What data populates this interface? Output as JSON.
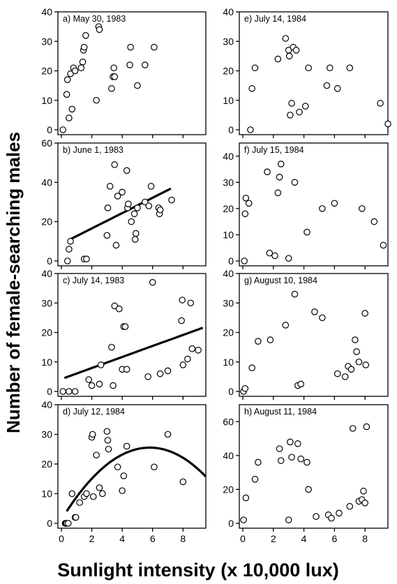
{
  "figure": {
    "ylabel": "Number of female-searching males",
    "xlabel": "Sunlight intensity (x 10,000 lux)"
  },
  "chart_data": [
    {
      "type": "scatter",
      "label": "a) May 30, 1983",
      "xlim": [
        0,
        9.5
      ],
      "ylim": [
        0,
        40
      ],
      "yticks": [
        0,
        10,
        20,
        30,
        40
      ],
      "xticks": [],
      "fit": null,
      "x": [
        0.1,
        0.35,
        0.4,
        0.5,
        0.6,
        0.7,
        0.8,
        0.9,
        1.3,
        1.4,
        1.45,
        1.5,
        1.6,
        2.3,
        2.45,
        2.5,
        3.3,
        3.4,
        3.45,
        3.5,
        4.5,
        4.55,
        5.0,
        5.5,
        6.1
      ],
      "y": [
        0,
        12,
        17,
        4,
        19,
        7,
        21,
        20,
        21,
        23,
        27,
        28,
        32,
        10,
        35,
        34,
        14,
        18,
        21,
        18,
        22,
        28,
        15,
        22,
        28
      ]
    },
    {
      "type": "scatter",
      "label": "b) June 1, 1983",
      "xlim": [
        0,
        9.5
      ],
      "ylim": [
        0,
        60
      ],
      "yticks": [
        0,
        20,
        40,
        60
      ],
      "xticks": [],
      "fit": {
        "kind": "linear",
        "x_range": [
          0.6,
          7.2
        ],
        "coef": [
          8.75,
          3.9
        ]
      },
      "x": [
        0.4,
        0.5,
        0.6,
        1.5,
        1.65,
        3.0,
        3.05,
        3.2,
        3.5,
        3.6,
        3.7,
        4.0,
        4.3,
        4.35,
        4.4,
        4.6,
        4.8,
        4.85,
        4.9,
        5.0,
        5.5,
        5.75,
        5.9,
        6.4,
        6.45,
        6.5,
        7.25
      ],
      "y": [
        0,
        6,
        10,
        1,
        1,
        13,
        27,
        38,
        49,
        8,
        33,
        35,
        46,
        27,
        29,
        20,
        24,
        11,
        14,
        27,
        30,
        28,
        38,
        27,
        24,
        26,
        31
      ]
    },
    {
      "type": "scatter",
      "label": "c) July 14, 1983",
      "xlim": [
        0,
        9.5
      ],
      "ylim": [
        0,
        40
      ],
      "yticks": [
        0,
        10,
        20,
        30,
        40
      ],
      "xticks": [],
      "fit": {
        "kind": "linear",
        "x_range": [
          0.2,
          9.3
        ],
        "coef": [
          4.2,
          1.87
        ]
      },
      "x": [
        0.1,
        0.5,
        0.9,
        1.8,
        2.0,
        2.5,
        2.6,
        3.3,
        3.4,
        3.5,
        3.8,
        4.0,
        4.1,
        4.2,
        4.3,
        5.7,
        6.0,
        6.5,
        7.0,
        7.9,
        7.95,
        8.0,
        8.3,
        8.5,
        8.6,
        9.0
      ],
      "y": [
        0,
        0,
        0,
        4,
        2,
        2.5,
        9,
        15,
        2,
        29,
        28,
        7.5,
        22,
        22,
        7.5,
        5,
        37,
        6,
        7,
        24,
        31,
        9,
        11,
        30,
        14.5,
        14
      ]
    },
    {
      "type": "scatter",
      "label": "d) July 12, 1984",
      "xlim": [
        0,
        9.5
      ],
      "ylim": [
        0,
        40
      ],
      "yticks": [
        0,
        10,
        20,
        30,
        40
      ],
      "xticks": [
        0,
        2,
        4,
        6,
        8
      ],
      "fit": {
        "kind": "quadratic",
        "x_range": [
          0.35,
          9.5
        ],
        "coef": [
          1.2,
          8.37,
          -0.72
        ]
      },
      "x": [
        0.25,
        0.3,
        0.35,
        0.45,
        0.7,
        0.9,
        0.95,
        1.2,
        1.5,
        1.65,
        2.0,
        2.05,
        2.1,
        2.3,
        2.5,
        2.7,
        3.0,
        3.05,
        3.1,
        3.7,
        4.0,
        4.1,
        4.3,
        6.1,
        7.0,
        8.0
      ],
      "y": [
        0,
        0,
        0,
        0,
        10,
        2,
        2,
        7,
        9,
        10,
        29,
        30,
        9,
        23,
        12,
        10,
        31,
        28,
        25,
        19,
        11,
        16,
        26,
        19,
        30,
        14
      ]
    },
    {
      "type": "scatter",
      "label": "e) July 14, 1984",
      "xlim": [
        0,
        9.5
      ],
      "ylim": [
        0,
        40
      ],
      "yticks": [
        0,
        10,
        20,
        30,
        40
      ],
      "xticks": [],
      "fit": null,
      "x": [
        0.5,
        0.6,
        0.8,
        2.3,
        2.8,
        3.0,
        3.05,
        3.1,
        3.2,
        3.3,
        3.5,
        3.7,
        4.1,
        4.3,
        5.5,
        5.7,
        6.2,
        7.0,
        9.0,
        9.5
      ],
      "y": [
        0,
        14,
        21,
        24,
        31,
        27,
        25,
        5,
        9,
        28,
        27,
        6,
        8,
        21,
        15,
        21,
        14,
        21,
        9,
        2
      ]
    },
    {
      "type": "scatter",
      "label": "f) July 15, 1984",
      "xlim": [
        0,
        9.5
      ],
      "ylim": [
        0,
        45
      ],
      "yticks": [
        0,
        10,
        20,
        30,
        40
      ],
      "xticks": [],
      "fit": null,
      "x": [
        0.1,
        0.15,
        0.2,
        0.4,
        1.6,
        1.75,
        2.1,
        2.3,
        2.4,
        2.5,
        3.0,
        3.4,
        4.2,
        5.2,
        6.0,
        7.8,
        8.6,
        9.2
      ],
      "y": [
        0,
        18,
        24,
        22,
        34,
        3,
        2,
        26,
        32,
        37,
        1,
        30,
        11,
        20,
        22,
        20,
        15,
        6
      ]
    },
    {
      "type": "scatter",
      "label": "g) August 10, 1984",
      "xlim": [
        0,
        9.5
      ],
      "ylim": [
        0,
        40
      ],
      "yticks": [
        0,
        10,
        20,
        30,
        40
      ],
      "xticks": [],
      "fit": null,
      "x": [
        0.05,
        0.15,
        0.6,
        1.0,
        1.8,
        2.8,
        3.4,
        3.6,
        3.8,
        4.7,
        5.2,
        6.2,
        6.7,
        6.9,
        7.1,
        7.35,
        7.45,
        7.6,
        8.0,
        8.05
      ],
      "y": [
        0,
        1,
        8,
        17,
        17.5,
        22.5,
        33,
        2,
        2.5,
        27,
        25,
        6,
        5,
        8.5,
        7.5,
        17.5,
        13.5,
        10,
        26.5,
        9
      ]
    },
    {
      "type": "scatter",
      "label": "h) August 11, 1984",
      "xlim": [
        0,
        9.5
      ],
      "ylim": [
        0,
        70
      ],
      "yticks": [
        0,
        20,
        40,
        60
      ],
      "xticks": [
        0,
        2,
        4,
        6,
        8
      ],
      "fit": null,
      "x": [
        0.05,
        0.2,
        0.8,
        1.0,
        2.4,
        2.5,
        3.0,
        3.1,
        3.2,
        3.6,
        3.8,
        4.2,
        4.3,
        4.8,
        5.6,
        5.8,
        6.3,
        7.0,
        7.2,
        7.6,
        7.8,
        7.9,
        8.0,
        8.1
      ],
      "y": [
        2,
        15,
        26,
        36,
        44,
        37,
        2,
        48,
        39,
        47,
        38,
        36,
        20,
        4,
        5,
        3,
        6,
        10,
        56,
        13,
        14,
        19,
        12,
        57
      ]
    }
  ]
}
